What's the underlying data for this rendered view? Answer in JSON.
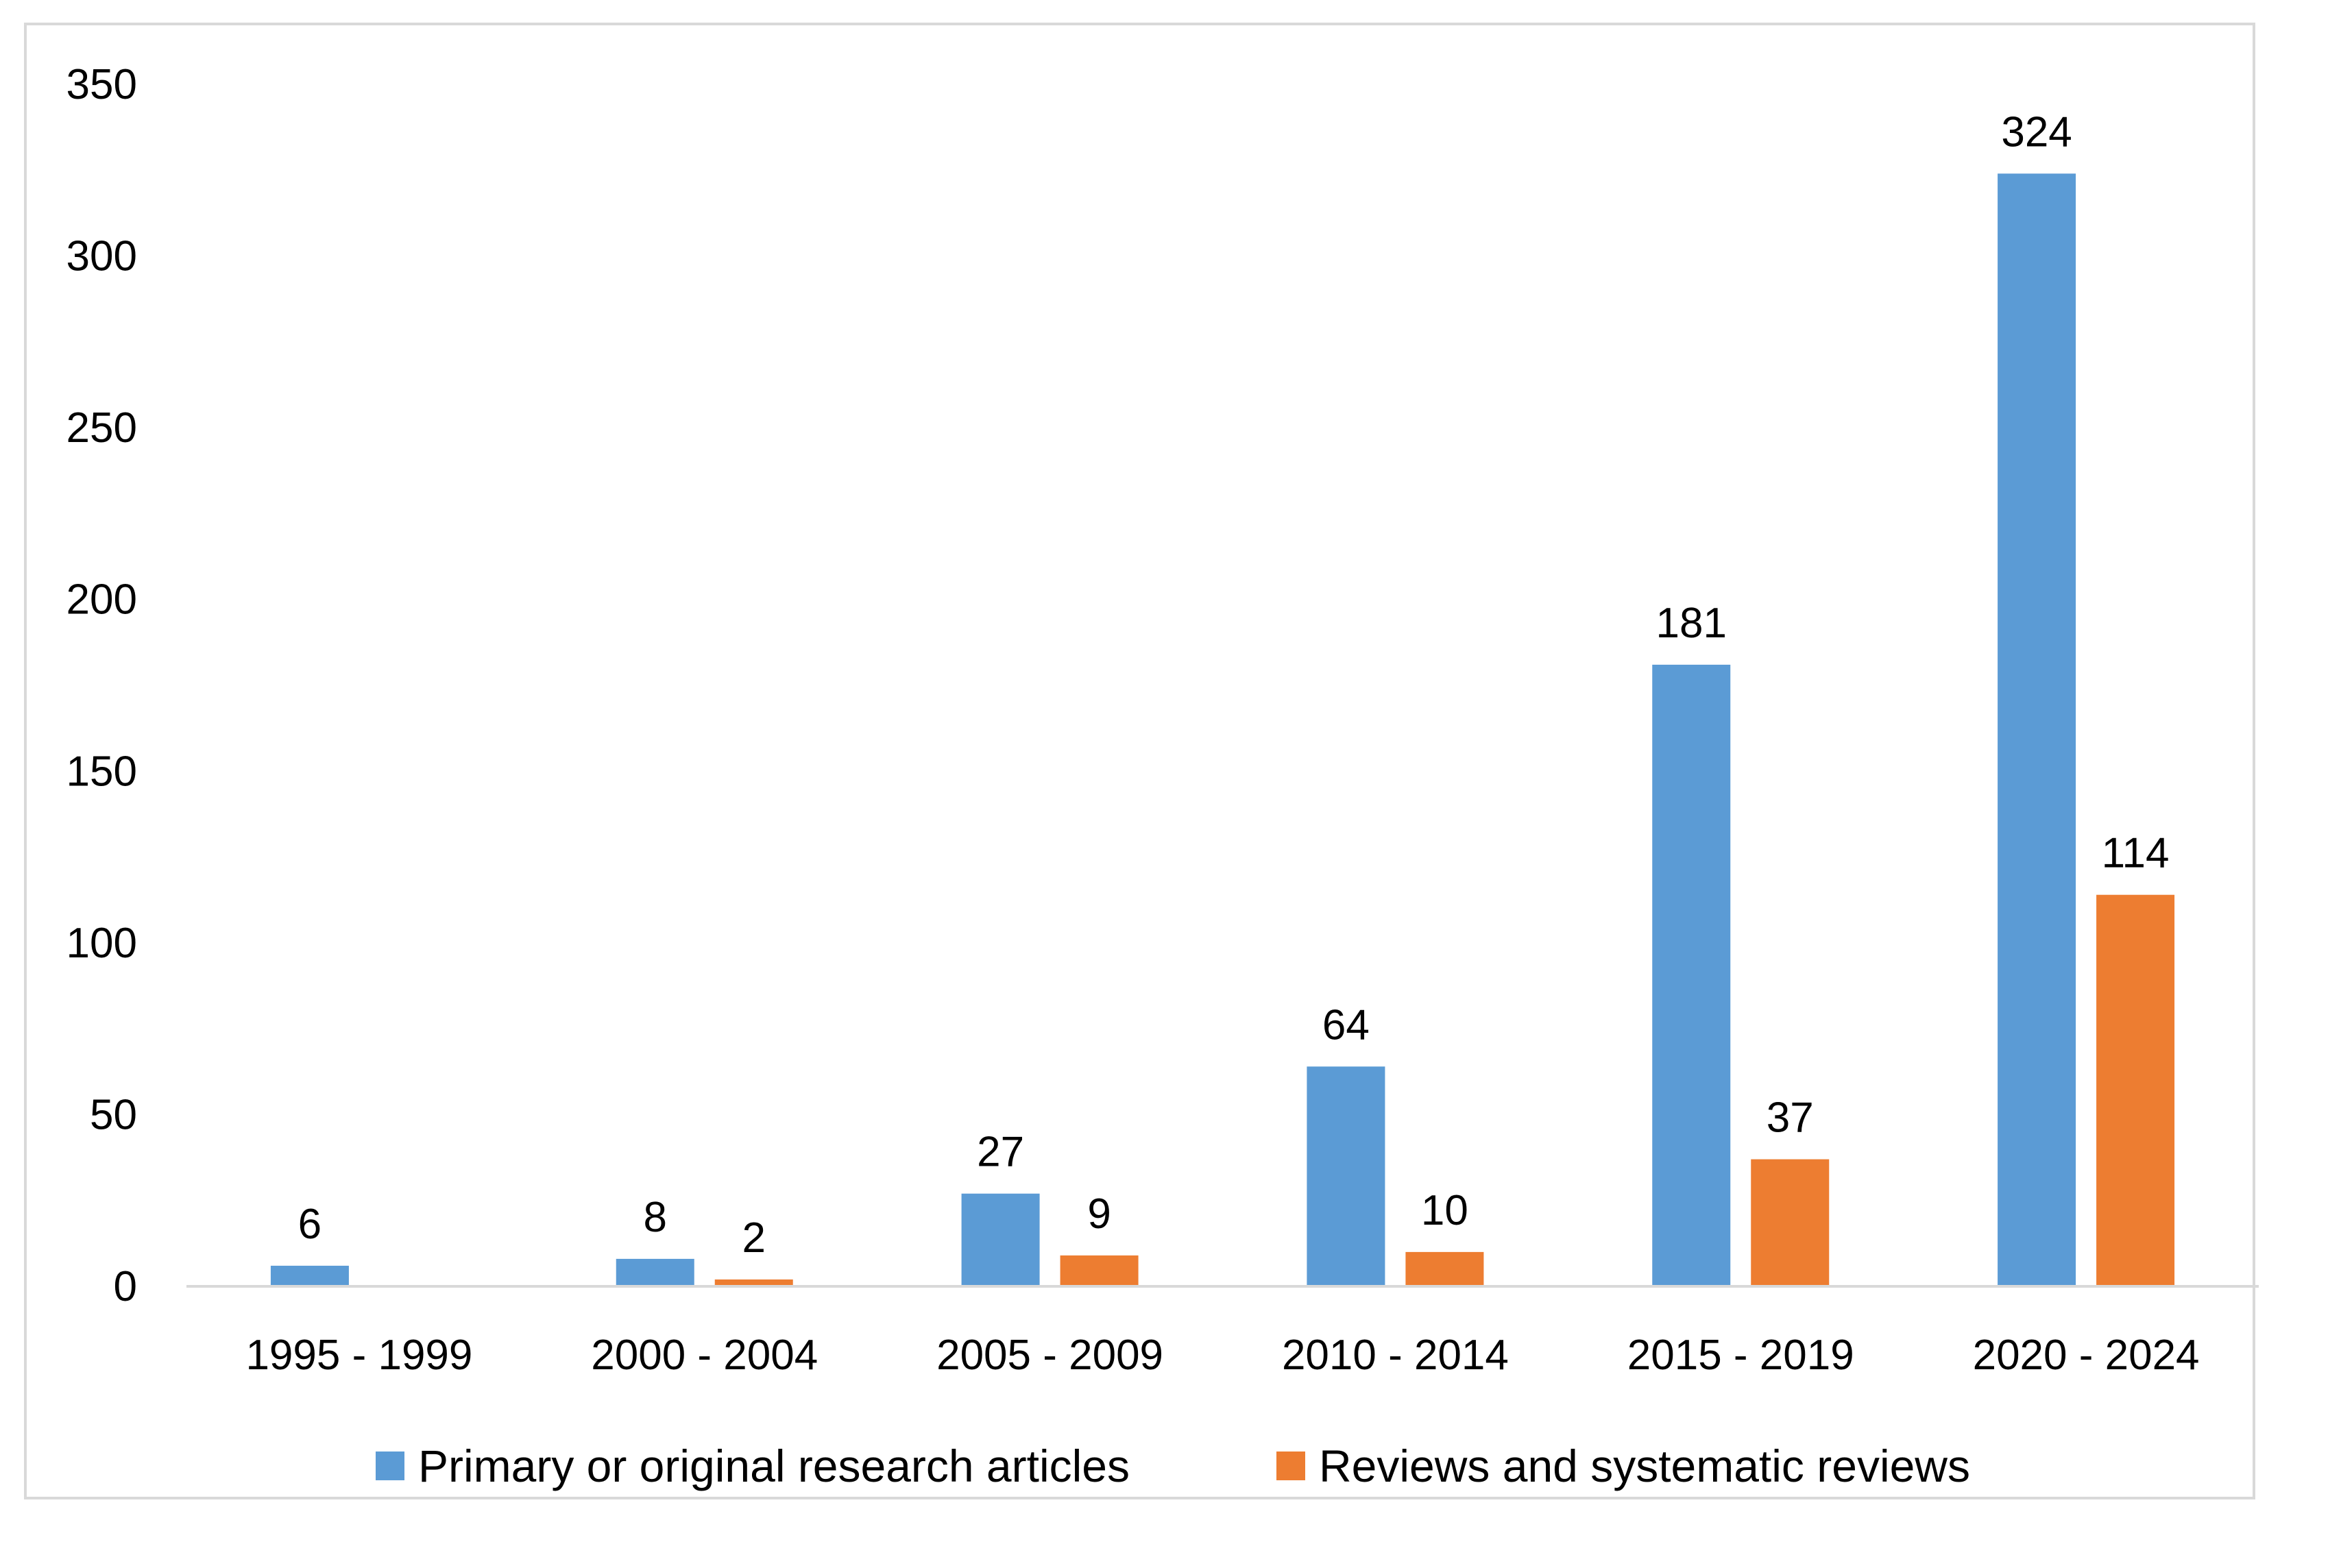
{
  "chart_data": {
    "type": "bar",
    "categories": [
      "1995 - 1999",
      "2000 - 2004",
      "2005 - 2009",
      "2010 - 2014",
      "2015 - 2019",
      "2020 - 2024"
    ],
    "series": [
      {
        "name": "Primary or original research articles",
        "values": [
          6,
          8,
          27,
          64,
          181,
          324
        ],
        "labels": [
          "6",
          "8",
          "27",
          "64",
          "181",
          "324"
        ],
        "color": "#5b9bd5"
      },
      {
        "name": "Reviews and systematic reviews",
        "values": [
          0,
          2,
          9,
          10,
          37,
          114
        ],
        "labels": [
          "",
          "2",
          "9",
          "10",
          "37",
          "114"
        ],
        "color": "#ed7d31"
      }
    ],
    "y_ticks": [
      "0",
      "50",
      "100",
      "150",
      "200",
      "250",
      "300",
      "350"
    ],
    "ylim": [
      0,
      350
    ],
    "grid": false,
    "legend_position": "bottom",
    "title": "",
    "xlabel": "",
    "ylabel": ""
  }
}
